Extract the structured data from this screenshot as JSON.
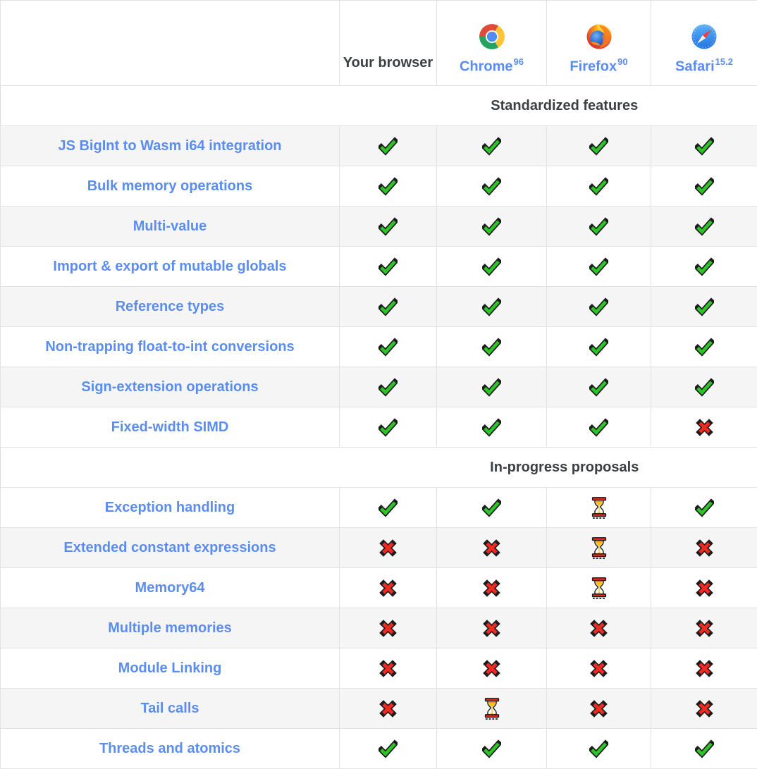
{
  "table": {
    "columns": [
      {
        "id": "your-browser",
        "label": "Your browser",
        "version": null,
        "icon": null
      },
      {
        "id": "chrome",
        "label": "Chrome",
        "version": "96",
        "icon": "chrome-logo-icon"
      },
      {
        "id": "firefox",
        "label": "Firefox",
        "version": "90",
        "icon": "firefox-logo-icon"
      },
      {
        "id": "safari",
        "label": "Safari",
        "version": "15.2",
        "icon": "safari-logo-icon"
      }
    ],
    "sections": [
      {
        "title": "Standardized features",
        "rows": [
          {
            "feature": "JS BigInt to Wasm i64 integration",
            "support": [
              "yes",
              "yes",
              "yes",
              "yes"
            ]
          },
          {
            "feature": "Bulk memory operations",
            "support": [
              "yes",
              "yes",
              "yes",
              "yes"
            ]
          },
          {
            "feature": "Multi-value",
            "support": [
              "yes",
              "yes",
              "yes",
              "yes"
            ]
          },
          {
            "feature": "Import & export of mutable globals",
            "support": [
              "yes",
              "yes",
              "yes",
              "yes"
            ]
          },
          {
            "feature": "Reference types",
            "support": [
              "yes",
              "yes",
              "yes",
              "yes"
            ]
          },
          {
            "feature": "Non-trapping float-to-int conversions",
            "support": [
              "yes",
              "yes",
              "yes",
              "yes"
            ]
          },
          {
            "feature": "Sign-extension operations",
            "support": [
              "yes",
              "yes",
              "yes",
              "yes"
            ]
          },
          {
            "feature": "Fixed-width SIMD",
            "support": [
              "yes",
              "yes",
              "yes",
              "no"
            ]
          }
        ]
      },
      {
        "title": "In-progress proposals",
        "rows": [
          {
            "feature": "Exception handling",
            "support": [
              "yes",
              "yes",
              "pending",
              "yes"
            ]
          },
          {
            "feature": "Extended constant expressions",
            "support": [
              "no",
              "no",
              "pending",
              "no"
            ]
          },
          {
            "feature": "Memory64",
            "support": [
              "no",
              "no",
              "pending",
              "no"
            ]
          },
          {
            "feature": "Multiple memories",
            "support": [
              "no",
              "no",
              "no",
              "no"
            ]
          },
          {
            "feature": "Module Linking",
            "support": [
              "no",
              "no",
              "no",
              "no"
            ]
          },
          {
            "feature": "Tail calls",
            "support": [
              "no",
              "pending",
              "no",
              "no"
            ]
          },
          {
            "feature": "Threads and atomics",
            "support": [
              "yes",
              "yes",
              "yes",
              "yes"
            ]
          }
        ]
      }
    ],
    "icon_map": {
      "yes": "check-icon",
      "no": "cross-icon",
      "pending": "hourglass-icon"
    },
    "colors": {
      "link_blue": "#5b8def",
      "header_text": "#3c4043",
      "check_green": "#2dc428",
      "cross_red": "#ee2a23",
      "hourglass_amber": "#ffc21c",
      "hourglass_red": "#e3261d",
      "row_stripe": "#f5f5f5"
    }
  }
}
